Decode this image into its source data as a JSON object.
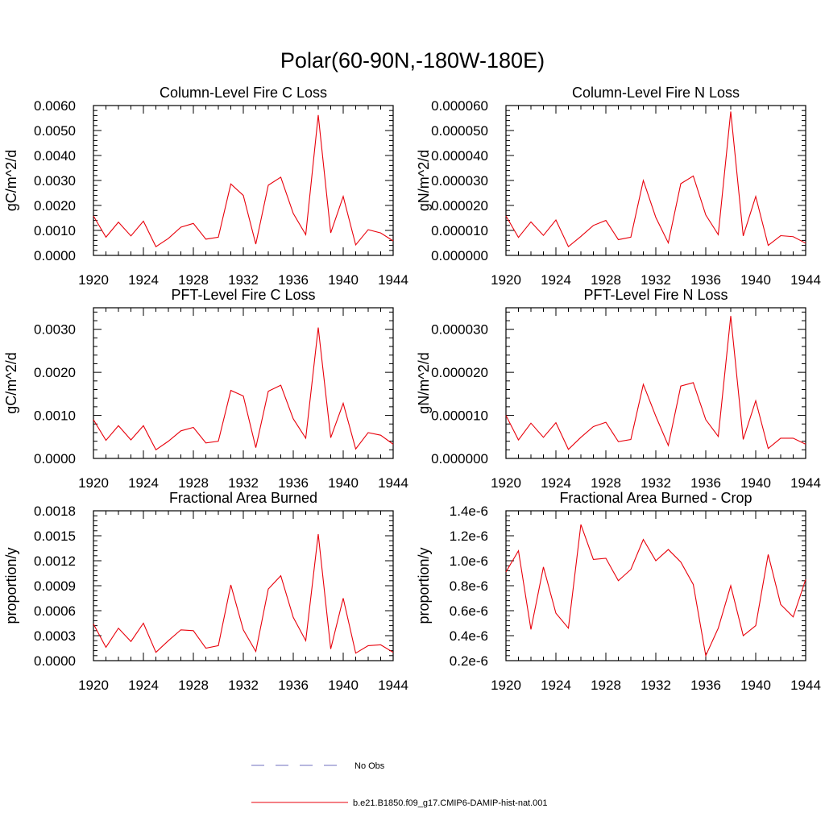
{
  "figure": {
    "title": "Polar(60-90N,-180W-180E)",
    "legend": [
      {
        "label": "No Obs",
        "color": "#6f6fbf",
        "style": "dashed"
      },
      {
        "label": "b.e21.B1850.f09_g17.CMIP6-DAMIP-hist-nat.001",
        "color": "#e8000b",
        "style": "solid"
      }
    ]
  },
  "chart_data": [
    {
      "type": "line",
      "title": "Column-Level Fire C Loss",
      "ylabel": "gC/m^2/d",
      "xlabel": "",
      "xlim": [
        1920,
        1944
      ],
      "ylim": [
        0,
        0.006
      ],
      "xticks": [
        "1920",
        "1924",
        "1928",
        "1932",
        "1936",
        "1940",
        "1944"
      ],
      "yticks": [
        "0.0000",
        "0.0010",
        "0.0020",
        "0.0030",
        "0.0040",
        "0.0050",
        "0.0060"
      ],
      "x": [
        1920,
        1921,
        1922,
        1923,
        1924,
        1925,
        1926,
        1927,
        1928,
        1929,
        1930,
        1931,
        1932,
        1933,
        1934,
        1935,
        1936,
        1937,
        1938,
        1939,
        1940,
        1941,
        1942,
        1943,
        1944
      ],
      "series": [
        {
          "name": "b.e21.B1850.f09_g17.CMIP6-DAMIP-hist-nat.001",
          "color": "#e8000b",
          "values": [
            0.00158,
            0.00073,
            0.00133,
            0.00078,
            0.00137,
            0.00035,
            0.00068,
            0.00113,
            0.00128,
            0.00065,
            0.00073,
            0.00286,
            0.0024,
            0.00045,
            0.00281,
            0.00313,
            0.00168,
            0.00083,
            0.00562,
            0.0009,
            0.00236,
            0.00042,
            0.00103,
            0.0009,
            0.00058
          ]
        }
      ]
    },
    {
      "type": "line",
      "title": "Column-Level Fire N Loss",
      "ylabel": "gN/m^2/d",
      "xlabel": "",
      "xlim": [
        1920,
        1944
      ],
      "ylim": [
        0,
        6e-05
      ],
      "xticks": [
        "1920",
        "1924",
        "1928",
        "1932",
        "1936",
        "1940",
        "1944"
      ],
      "yticks": [
        "0.000000",
        "0.000010",
        "0.000020",
        "0.000030",
        "0.000040",
        "0.000050",
        "0.000060"
      ],
      "x": [
        1920,
        1921,
        1922,
        1923,
        1924,
        1925,
        1926,
        1927,
        1928,
        1929,
        1930,
        1931,
        1932,
        1933,
        1934,
        1935,
        1936,
        1937,
        1938,
        1939,
        1940,
        1941,
        1942,
        1943,
        1944
      ],
      "series": [
        {
          "name": "b.e21.B1850.f09_g17.CMIP6-DAMIP-hist-nat.001",
          "color": "#e8000b",
          "values": [
            1.58e-05,
            7.2e-06,
            1.34e-05,
            8e-06,
            1.42e-05,
            3.5e-06,
            7.6e-06,
            1.2e-05,
            1.4e-05,
            6.3e-06,
            7.3e-06,
            3e-05,
            1.52e-05,
            5e-06,
            2.87e-05,
            3.18e-05,
            1.62e-05,
            8.3e-06,
            5.76e-05,
            7.8e-06,
            2.36e-05,
            4e-06,
            7.9e-06,
            7.5e-06,
            4.9e-06
          ]
        }
      ]
    },
    {
      "type": "line",
      "title": "PFT-Level Fire C Loss",
      "ylabel": "gC/m^2/d",
      "xlabel": "",
      "xlim": [
        1920,
        1944
      ],
      "ylim": [
        0,
        0.0035
      ],
      "xticks": [
        "1920",
        "1924",
        "1928",
        "1932",
        "1936",
        "1940",
        "1944"
      ],
      "yticks": [
        "0.0000",
        "0.0010",
        "0.0020",
        "0.0030"
      ],
      "x": [
        1920,
        1921,
        1922,
        1923,
        1924,
        1925,
        1926,
        1927,
        1928,
        1929,
        1930,
        1931,
        1932,
        1933,
        1934,
        1935,
        1936,
        1937,
        1938,
        1939,
        1940,
        1941,
        1942,
        1943,
        1944
      ],
      "series": [
        {
          "name": "b.e21.B1850.f09_g17.CMIP6-DAMIP-hist-nat.001",
          "color": "#e8000b",
          "values": [
            0.0009,
            0.00042,
            0.00076,
            0.00043,
            0.00076,
            0.0002,
            0.0004,
            0.00064,
            0.00072,
            0.00036,
            0.0004,
            0.00158,
            0.00145,
            0.00025,
            0.00156,
            0.0017,
            0.00092,
            0.00047,
            0.00304,
            0.00048,
            0.00128,
            0.00022,
            0.0006,
            0.00054,
            0.00033
          ]
        }
      ]
    },
    {
      "type": "line",
      "title": "PFT-Level Fire N Loss",
      "ylabel": "gN/m^2/d",
      "xlabel": "",
      "xlim": [
        1920,
        1944
      ],
      "ylim": [
        0,
        3.5e-05
      ],
      "xticks": [
        "1920",
        "1924",
        "1928",
        "1932",
        "1936",
        "1940",
        "1944"
      ],
      "yticks": [
        "0.000000",
        "0.000010",
        "0.000020",
        "0.000030"
      ],
      "x": [
        1920,
        1921,
        1922,
        1923,
        1924,
        1925,
        1926,
        1927,
        1928,
        1929,
        1930,
        1931,
        1932,
        1933,
        1934,
        1935,
        1936,
        1937,
        1938,
        1939,
        1940,
        1941,
        1942,
        1943,
        1944
      ],
      "series": [
        {
          "name": "b.e21.B1850.f09_g17.CMIP6-DAMIP-hist-nat.001",
          "color": "#e8000b",
          "values": [
            1e-05,
            4.3e-06,
            8.2e-06,
            4.9e-06,
            8.3e-06,
            2.1e-06,
            4.9e-06,
            7.4e-06,
            8.4e-06,
            3.9e-06,
            4.4e-06,
            1.72e-05,
            9.8e-06,
            3e-06,
            1.68e-05,
            1.76e-05,
            9e-06,
            5.1e-06,
            3.31e-05,
            4.4e-06,
            1.34e-05,
            2.3e-06,
            4.7e-06,
            4.7e-06,
            3.3e-06
          ]
        }
      ]
    },
    {
      "type": "line",
      "title": "Fractional Area Burned",
      "ylabel": "proportion/y",
      "xlabel": "",
      "xlim": [
        1920,
        1944
      ],
      "ylim": [
        0,
        0.0018
      ],
      "xticks": [
        "1920",
        "1924",
        "1928",
        "1932",
        "1936",
        "1940",
        "1944"
      ],
      "yticks": [
        "0.0000",
        "0.0003",
        "0.0006",
        "0.0009",
        "0.0012",
        "0.0015",
        "0.0018"
      ],
      "x": [
        1920,
        1921,
        1922,
        1923,
        1924,
        1925,
        1926,
        1927,
        1928,
        1929,
        1930,
        1931,
        1932,
        1933,
        1934,
        1935,
        1936,
        1937,
        1938,
        1939,
        1940,
        1941,
        1942,
        1943,
        1944
      ],
      "series": [
        {
          "name": "b.e21.B1850.f09_g17.CMIP6-DAMIP-hist-nat.001",
          "color": "#e8000b",
          "values": [
            0.00044,
            0.00016,
            0.00039,
            0.00023,
            0.00045,
            0.0001,
            0.00024,
            0.00037,
            0.00036,
            0.00015,
            0.00018,
            0.00091,
            0.00037,
            0.00011,
            0.00086,
            0.00102,
            0.00052,
            0.00024,
            0.00152,
            0.00014,
            0.00075,
            9e-05,
            0.00018,
            0.00019,
            0.0001
          ]
        }
      ]
    },
    {
      "type": "line",
      "title": "Fractional Area Burned - Crop",
      "ylabel": "proportion/y",
      "xlabel": "",
      "xlim": [
        1920,
        1944
      ],
      "ylim": [
        2e-07,
        1.4e-06
      ],
      "xticks": [
        "1920",
        "1924",
        "1928",
        "1932",
        "1936",
        "1940",
        "1944"
      ],
      "yticks": [
        "0.2e-6",
        "0.4e-6",
        "0.6e-6",
        "0.8e-6",
        "1.0e-6",
        "1.2e-6",
        "1.4e-6"
      ],
      "x": [
        1920,
        1921,
        1922,
        1923,
        1924,
        1925,
        1926,
        1927,
        1928,
        1929,
        1930,
        1931,
        1932,
        1933,
        1934,
        1935,
        1936,
        1937,
        1938,
        1939,
        1940,
        1941,
        1942,
        1943,
        1944
      ],
      "series": [
        {
          "name": "b.e21.B1850.f09_g17.CMIP6-DAMIP-hist-nat.001",
          "color": "#e8000b",
          "values": [
            9.1e-07,
            1.08e-06,
            4.5e-07,
            9.5e-07,
            5.8e-07,
            4.6e-07,
            1.29e-06,
            1.01e-06,
            1.02e-06,
            8.4e-07,
            9.3e-07,
            1.17e-06,
            1e-06,
            1.09e-06,
            9.9e-07,
            8.1e-07,
            2.4e-07,
            4.6e-07,
            8e-07,
            4e-07,
            4.8e-07,
            1.05e-06,
            6.5e-07,
            5.5e-07,
            8.5e-07
          ]
        }
      ]
    }
  ]
}
